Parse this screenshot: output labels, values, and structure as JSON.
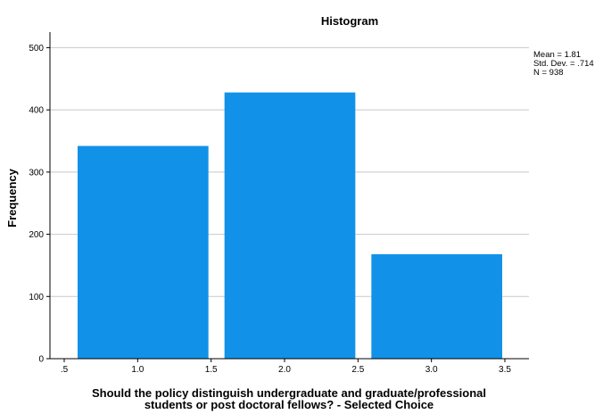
{
  "chart_data": {
    "type": "bar",
    "title": "Histogram",
    "ylabel": "Frequency",
    "xlabel_lines": [
      "Should the policy distinguish undergraduate and graduate/professional",
      "students or post doctoral fellows? - Selected Choice"
    ],
    "x_ticks": [
      ".5",
      "1.0",
      "1.5",
      "2.0",
      "2.5",
      "3.0",
      "3.5"
    ],
    "xlim": [
      0.5,
      3.5
    ],
    "ylim": [
      0,
      525
    ],
    "y_ticks": [
      "0",
      "100",
      "200",
      "300",
      "400",
      "500"
    ],
    "bins": [
      {
        "from": 0.5,
        "to": 1.5,
        "value": 342
      },
      {
        "from": 1.5,
        "to": 2.5,
        "value": 428
      },
      {
        "from": 2.5,
        "to": 3.5,
        "value": 168
      }
    ],
    "bar_color": "#1192e8",
    "grid": true,
    "stats": [
      "Mean = 1.81",
      "Std. Dev. = .714",
      "N = 938"
    ]
  }
}
